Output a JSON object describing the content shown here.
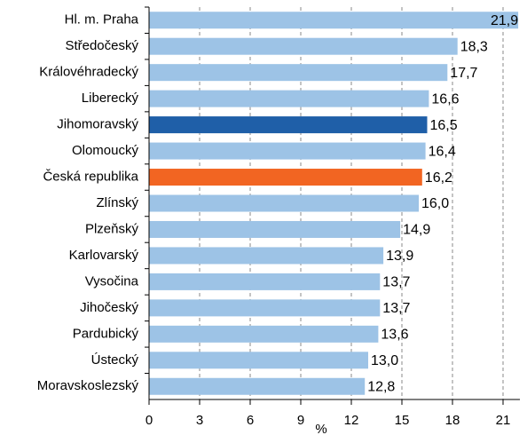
{
  "chart_data": {
    "type": "barh",
    "categories": [
      "Hl. m. Praha",
      "Středočeský",
      "Královéhradecký",
      "Liberecký",
      "Jihomoravský",
      "Olomoucký",
      "Česká republika",
      "Zlínský",
      "Plzeňský",
      "Karlovarský",
      "Vysočina",
      "Jihočeský",
      "Pardubický",
      "Ústecký",
      "Moravskoslezský"
    ],
    "values": [
      21.9,
      18.3,
      17.7,
      16.6,
      16.5,
      16.4,
      16.2,
      16.0,
      14.9,
      13.9,
      13.7,
      13.7,
      13.6,
      13.0,
      12.8
    ],
    "value_labels": [
      "21,9",
      "18,3",
      "17,7",
      "16,6",
      "16,5",
      "16,4",
      "16,2",
      "16,0",
      "14,9",
      "13,9",
      "13,7",
      "13,7",
      "13,6",
      "13,0",
      "12,8"
    ],
    "colors": [
      "#9dc3e6",
      "#9dc3e6",
      "#9dc3e6",
      "#9dc3e6",
      "#1f5fa8",
      "#9dc3e6",
      "#f26522",
      "#9dc3e6",
      "#9dc3e6",
      "#9dc3e6",
      "#9dc3e6",
      "#9dc3e6",
      "#9dc3e6",
      "#9dc3e6",
      "#9dc3e6"
    ],
    "xlabel": "%",
    "xlim": [
      0,
      22
    ],
    "xticks": [
      0,
      3,
      6,
      9,
      12,
      15,
      18,
      21
    ],
    "grid": true
  }
}
